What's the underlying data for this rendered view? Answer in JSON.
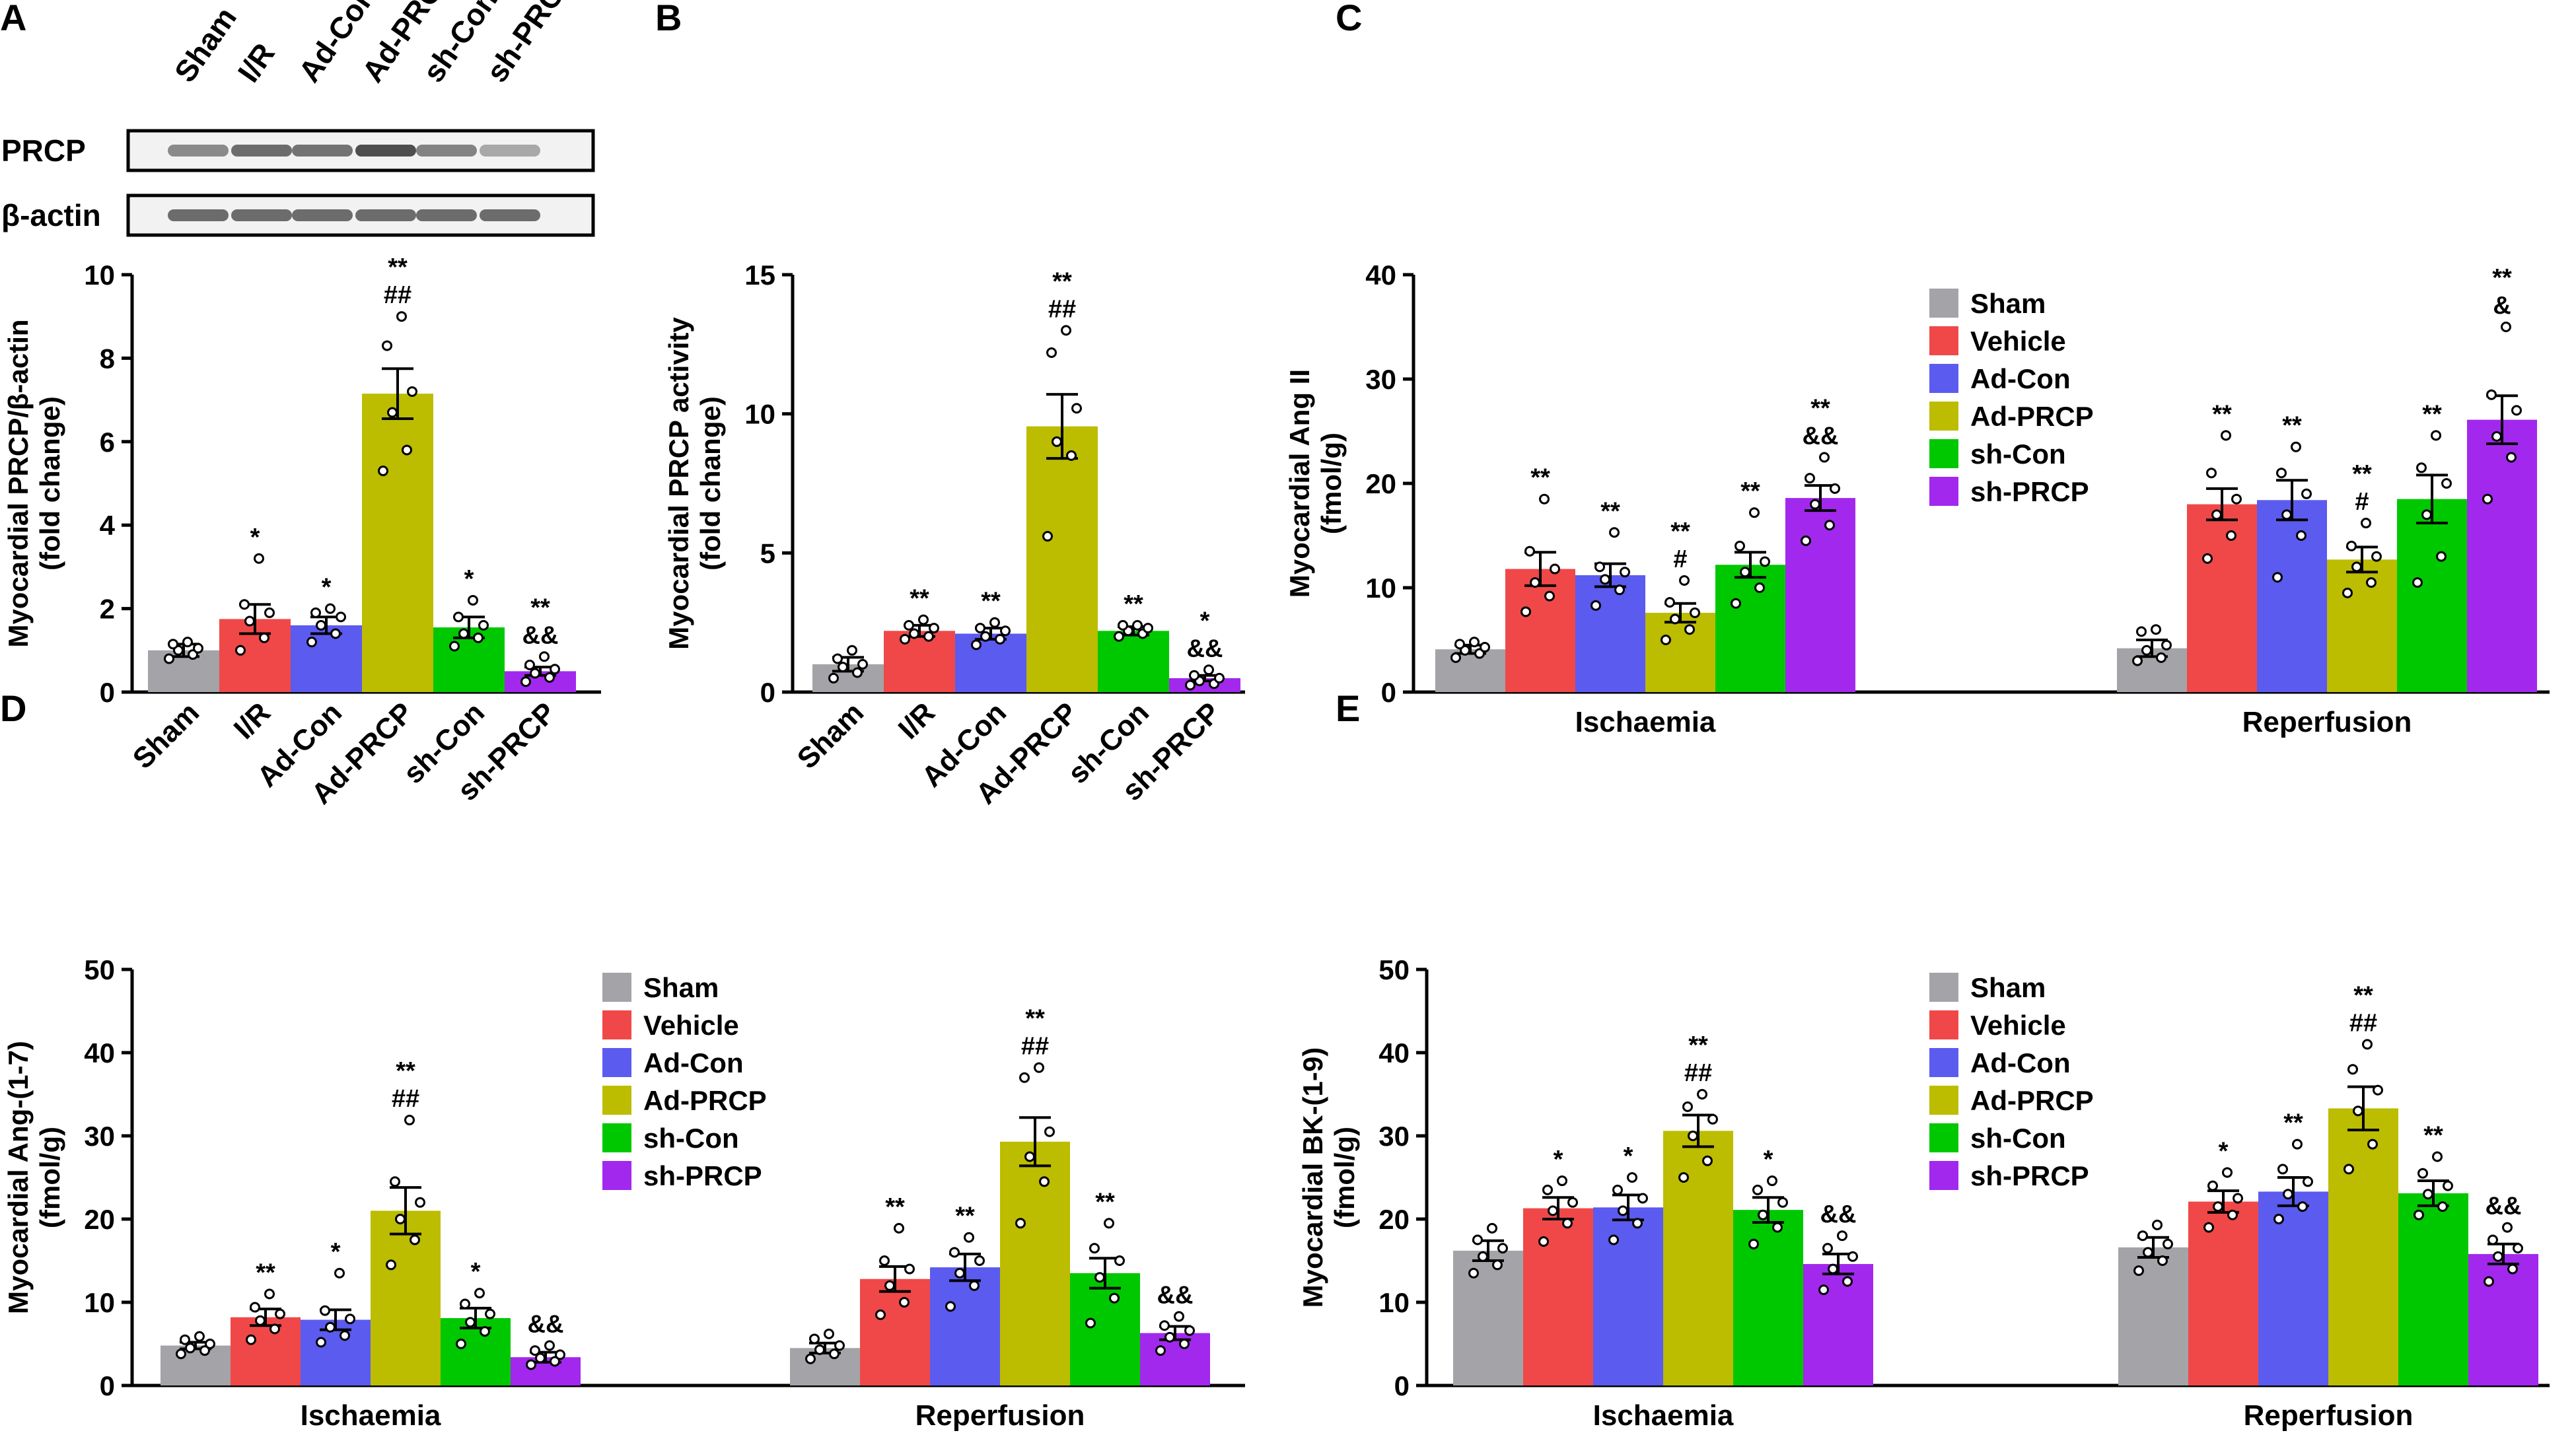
{
  "figure": {
    "colors": {
      "Sham": "#a3a3a8",
      "I/R": "#f04848",
      "Vehicle": "#f04848",
      "Ad-Con": "#5b5bf0",
      "Ad-PRCP": "#bcbc00",
      "sh-Con": "#00c800",
      "sh-PRCP": "#a228ee"
    },
    "blot": {
      "lane_labels": [
        "Sham",
        "I/R",
        "Ad-Con",
        "Ad-PRCP",
        "sh-Con",
        "sh-PRCP"
      ],
      "rows": [
        {
          "label": "PRCP",
          "intensity": [
            0.55,
            0.75,
            0.7,
            0.95,
            0.6,
            0.35
          ]
        },
        {
          "label": "β-actin",
          "intensity": [
            0.75,
            0.75,
            0.75,
            0.75,
            0.75,
            0.75
          ]
        }
      ]
    }
  },
  "chart_data": [
    {
      "panel": "A",
      "type": "bar",
      "ylabel_lines": [
        "Myocardial PRCP/β-actin",
        "(fold change)"
      ],
      "ylim": [
        0,
        10
      ],
      "yticks": [
        0,
        2,
        4,
        6,
        8,
        10
      ],
      "categories": [
        "Sham",
        "I/R",
        "Ad-Con",
        "Ad-PRCP",
        "sh-Con",
        "sh-PRCP"
      ],
      "values": [
        1.0,
        1.75,
        1.6,
        7.15,
        1.55,
        0.5
      ],
      "errors": [
        0.15,
        0.35,
        0.2,
        0.6,
        0.25,
        0.1
      ],
      "points": [
        [
          0.8,
          0.9,
          1.0,
          1.05,
          1.15,
          1.2
        ],
        [
          1.0,
          1.3,
          1.7,
          1.9,
          2.1,
          3.2
        ],
        [
          1.2,
          1.4,
          1.6,
          1.8,
          1.9,
          2.0
        ],
        [
          5.3,
          5.8,
          6.7,
          7.2,
          8.3,
          9.0
        ],
        [
          1.1,
          1.3,
          1.4,
          1.6,
          1.8,
          2.2
        ],
        [
          0.25,
          0.35,
          0.45,
          0.55,
          0.65,
          0.85
        ]
      ],
      "annotations": [
        [],
        [
          "*"
        ],
        [
          "*"
        ],
        [
          "**",
          "##"
        ],
        [
          "*"
        ],
        [
          "**",
          "&&"
        ]
      ]
    },
    {
      "panel": "B",
      "type": "bar",
      "ylabel_lines": [
        "Myocardial PRCP activity",
        "(fold change)"
      ],
      "ylim": [
        0,
        15
      ],
      "yticks": [
        0,
        5,
        10,
        15
      ],
      "categories": [
        "Sham",
        "I/R",
        "Ad-Con",
        "Ad-PRCP",
        "sh-Con",
        "sh-PRCP"
      ],
      "values": [
        1.0,
        2.2,
        2.1,
        9.55,
        2.2,
        0.5
      ],
      "errors": [
        0.25,
        0.2,
        0.2,
        1.15,
        0.15,
        0.1
      ],
      "points": [
        [
          0.5,
          0.7,
          0.9,
          1.0,
          1.2,
          1.5
        ],
        [
          1.9,
          2.0,
          2.1,
          2.3,
          2.4,
          2.6
        ],
        [
          1.7,
          1.9,
          2.0,
          2.2,
          2.3,
          2.5
        ],
        [
          5.6,
          8.5,
          9.0,
          10.2,
          12.2,
          13.0
        ],
        [
          2.0,
          2.1,
          2.2,
          2.3,
          2.4,
          2.4
        ],
        [
          0.25,
          0.3,
          0.4,
          0.5,
          0.6,
          0.8
        ]
      ],
      "annotations": [
        [],
        [
          "**"
        ],
        [
          "**"
        ],
        [
          "**",
          "##"
        ],
        [
          "**"
        ],
        [
          "*",
          "&&"
        ]
      ]
    },
    {
      "panel": "C",
      "type": "bar",
      "ylabel_lines": [
        "Myocardial Ang II",
        "(fmol/g)"
      ],
      "ylim": [
        0,
        40
      ],
      "yticks": [
        0,
        10,
        20,
        30,
        40
      ],
      "groups": [
        "Ischaemia",
        "Reperfusion"
      ],
      "series": [
        {
          "name": "Sham",
          "values": [
            4.1,
            4.2
          ],
          "errors": [
            0.4,
            0.8
          ],
          "points": [
            [
              3.3,
              3.7,
              4.0,
              4.3,
              4.6,
              4.8
            ],
            [
              3.0,
              3.3,
              4.0,
              4.5,
              5.8,
              6.0
            ]
          ],
          "annotations": [
            [],
            []
          ]
        },
        {
          "name": "Vehicle",
          "values": [
            11.8,
            18.0
          ],
          "errors": [
            1.6,
            1.5
          ],
          "points": [
            [
              7.7,
              9.2,
              10.5,
              11.8,
              13.5,
              18.5
            ],
            [
              12.8,
              15.0,
              17.0,
              18.5,
              21.0,
              24.6
            ]
          ],
          "annotations": [
            [
              "**"
            ],
            [
              "**"
            ]
          ]
        },
        {
          "name": "Ad-Con",
          "values": [
            11.2,
            18.4
          ],
          "errors": [
            1.1,
            1.9
          ],
          "points": [
            [
              8.3,
              9.8,
              10.8,
              11.5,
              12.0,
              15.3
            ],
            [
              11.0,
              15.0,
              17.0,
              19.0,
              21.0,
              23.5
            ]
          ],
          "annotations": [
            [
              "**"
            ],
            [
              "**"
            ]
          ]
        },
        {
          "name": "Ad-PRCP",
          "values": [
            7.6,
            12.7
          ],
          "errors": [
            0.9,
            1.2
          ],
          "points": [
            [
              5.0,
              6.0,
              7.0,
              7.6,
              8.6,
              10.7
            ],
            [
              9.5,
              10.5,
              12.0,
              13.0,
              14.0,
              16.2
            ]
          ],
          "annotations": [
            [
              "**",
              "#"
            ],
            [
              "**",
              "#"
            ]
          ]
        },
        {
          "name": "sh-Con",
          "values": [
            12.2,
            18.5
          ],
          "errors": [
            1.2,
            2.3
          ],
          "points": [
            [
              8.5,
              10.0,
              11.5,
              12.5,
              14.0,
              17.2
            ],
            [
              10.5,
              13.0,
              17.0,
              20.0,
              21.5,
              24.6
            ]
          ],
          "annotations": [
            [
              "**"
            ],
            [
              "**"
            ]
          ]
        },
        {
          "name": "sh-PRCP",
          "values": [
            18.6,
            26.1
          ],
          "errors": [
            1.2,
            2.3
          ],
          "points": [
            [
              14.5,
              16.0,
              18.0,
              19.5,
              20.5,
              22.5
            ],
            [
              18.5,
              22.5,
              24.5,
              27.0,
              28.5,
              35.0
            ]
          ],
          "annotations": [
            [
              "**",
              "&&"
            ],
            [
              "**",
              "&"
            ]
          ]
        }
      ]
    },
    {
      "panel": "D",
      "type": "bar",
      "ylabel_lines": [
        "Myocardial Ang-(1-7)",
        "(fmol/g)"
      ],
      "ylim": [
        0,
        50
      ],
      "yticks": [
        0,
        10,
        20,
        30,
        40,
        50
      ],
      "groups": [
        "Ischaemia",
        "Reperfusion"
      ],
      "series": [
        {
          "name": "Sham",
          "values": [
            4.8,
            4.5
          ],
          "errors": [
            0.4,
            0.6
          ],
          "points": [
            [
              3.8,
              4.2,
              4.5,
              5.0,
              5.5,
              5.9
            ],
            [
              3.2,
              3.8,
              4.3,
              4.8,
              5.6,
              6.2
            ]
          ],
          "annotations": [
            [],
            []
          ]
        },
        {
          "name": "Vehicle",
          "values": [
            8.2,
            12.8
          ],
          "errors": [
            1.0,
            1.5
          ],
          "points": [
            [
              5.5,
              6.8,
              7.8,
              8.6,
              9.4,
              11.0
            ],
            [
              8.5,
              10.0,
              12.0,
              14.0,
              15.0,
              18.9
            ]
          ],
          "annotations": [
            [
              "**"
            ],
            [
              "**"
            ]
          ]
        },
        {
          "name": "Ad-Con",
          "values": [
            7.9,
            14.2
          ],
          "errors": [
            1.2,
            1.6
          ],
          "points": [
            [
              5.2,
              6.0,
              7.0,
              8.0,
              9.0,
              13.5
            ],
            [
              9.5,
              12.0,
              13.5,
              15.0,
              16.0,
              17.8
            ]
          ],
          "annotations": [
            [
              "*"
            ],
            [
              "**"
            ]
          ]
        },
        {
          "name": "Ad-PRCP",
          "values": [
            21.0,
            29.3
          ],
          "errors": [
            2.8,
            2.9
          ],
          "points": [
            [
              14.5,
              17.5,
              20.0,
              22.0,
              24.5,
              31.9
            ],
            [
              19.5,
              24.5,
              27.5,
              30.5,
              37.0,
              38.2
            ]
          ],
          "annotations": [
            [
              "**",
              "##"
            ],
            [
              "**",
              "##"
            ]
          ]
        },
        {
          "name": "sh-Con",
          "values": [
            8.1,
            13.5
          ],
          "errors": [
            1.2,
            1.8
          ],
          "points": [
            [
              5.0,
              6.5,
              7.6,
              8.6,
              9.8,
              11.1
            ],
            [
              7.5,
              10.5,
              13.0,
              15.0,
              16.5,
              19.5
            ]
          ],
          "annotations": [
            [
              "*"
            ],
            [
              "**"
            ]
          ]
        },
        {
          "name": "sh-PRCP",
          "values": [
            3.4,
            6.3
          ],
          "errors": [
            0.6,
            0.8
          ],
          "points": [
            [
              2.5,
              2.9,
              3.3,
              3.7,
              4.2,
              4.8
            ],
            [
              4.2,
              5.0,
              5.8,
              6.6,
              7.2,
              8.3
            ]
          ],
          "annotations": [
            [
              "&&"
            ],
            [
              "&&"
            ]
          ]
        }
      ]
    },
    {
      "panel": "E",
      "type": "bar",
      "ylabel_lines": [
        "Myocardial BK-(1-9)",
        "(fmol/g)"
      ],
      "ylim": [
        0,
        50
      ],
      "yticks": [
        0,
        10,
        20,
        30,
        40,
        50
      ],
      "groups": [
        "Ischaemia",
        "Reperfusion"
      ],
      "series": [
        {
          "name": "Sham",
          "values": [
            16.2,
            16.6
          ],
          "errors": [
            1.2,
            1.2
          ],
          "points": [
            [
              13.5,
              14.5,
              15.5,
              16.5,
              17.5,
              18.9
            ],
            [
              13.8,
              15.0,
              16.0,
              17.0,
              18.0,
              19.3
            ]
          ],
          "annotations": [
            [],
            []
          ]
        },
        {
          "name": "Vehicle",
          "values": [
            21.3,
            22.1
          ],
          "errors": [
            1.3,
            1.3
          ],
          "points": [
            [
              17.3,
              19.5,
              21.0,
              22.0,
              23.5,
              24.6
            ],
            [
              19.0,
              20.5,
              21.5,
              22.5,
              24.0,
              25.6
            ]
          ],
          "annotations": [
            [
              "*"
            ],
            [
              "*"
            ]
          ]
        },
        {
          "name": "Ad-Con",
          "values": [
            21.4,
            23.3
          ],
          "errors": [
            1.5,
            1.7
          ],
          "points": [
            [
              17.5,
              19.5,
              21.0,
              22.5,
              23.5,
              25.0
            ],
            [
              20.0,
              21.5,
              23.0,
              24.5,
              26.0,
              29.0
            ]
          ],
          "annotations": [
            [
              "*"
            ],
            [
              "**"
            ]
          ]
        },
        {
          "name": "Ad-PRCP",
          "values": [
            30.6,
            33.3
          ],
          "errors": [
            1.9,
            2.6
          ],
          "points": [
            [
              25.0,
              27.0,
              30.0,
              32.0,
              33.5,
              35.0
            ],
            [
              26.0,
              29.0,
              33.0,
              35.5,
              38.0,
              41.0
            ]
          ],
          "annotations": [
            [
              "**",
              "##"
            ],
            [
              "**",
              "##"
            ]
          ]
        },
        {
          "name": "sh-Con",
          "values": [
            21.1,
            23.1
          ],
          "errors": [
            1.5,
            1.5
          ],
          "points": [
            [
              17.0,
              19.0,
              20.5,
              22.0,
              23.5,
              24.6
            ],
            [
              20.5,
              21.5,
              23.0,
              24.0,
              25.5,
              27.5
            ]
          ],
          "annotations": [
            [
              "*"
            ],
            [
              "**"
            ]
          ]
        },
        {
          "name": "sh-PRCP",
          "values": [
            14.6,
            15.8
          ],
          "errors": [
            1.2,
            1.2
          ],
          "points": [
            [
              11.5,
              12.5,
              14.0,
              15.5,
              16.5,
              18.0
            ],
            [
              12.5,
              14.0,
              15.5,
              16.5,
              17.5,
              19.0
            ]
          ],
          "annotations": [
            [
              "&&"
            ],
            [
              "&&"
            ]
          ]
        }
      ]
    }
  ]
}
